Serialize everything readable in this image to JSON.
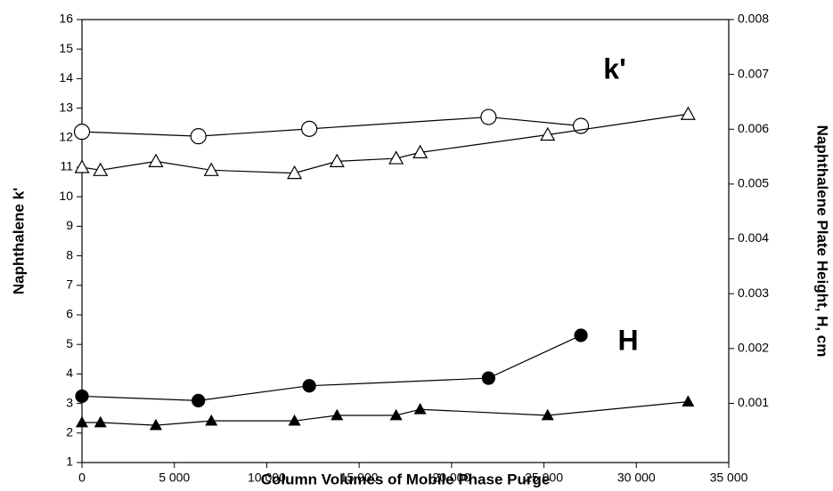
{
  "chart_data": {
    "type": "line",
    "xlabel": "Column Volumes of Mobile Phase Purge",
    "ylabel": "Naphthalene k'",
    "y2label": "Naphthalene Plate Height, H, cm",
    "annotations": [
      "k'",
      "H"
    ],
    "xlim": [
      0,
      35000
    ],
    "xticks": [
      0,
      {
        "value": 5000,
        "label": "5 000"
      },
      {
        "value": 10000,
        "label": "10 000"
      },
      {
        "value": 15000,
        "label": "15 000"
      },
      {
        "value": 20000,
        "label": "20 000"
      },
      {
        "value": 25000,
        "label": "25 000"
      },
      {
        "value": 30000,
        "label": "30 000"
      },
      {
        "value": 35000,
        "label": "35 000"
      }
    ],
    "ylim": [
      1,
      16
    ],
    "yticks": [
      1,
      2,
      3,
      4,
      5,
      6,
      7,
      8,
      9,
      10,
      11,
      12,
      13,
      14,
      15,
      16
    ],
    "y2lim": [
      -8e-05,
      0.008
    ],
    "y2ticks": [
      0.001,
      0.002,
      0.003,
      0.004,
      0.005,
      0.006,
      0.007,
      0.008
    ],
    "series": [
      {
        "marker": "circle",
        "filled": false,
        "color": "#000000",
        "x": [
          0,
          6300,
          12300,
          22000,
          27000
        ],
        "values": [
          12.2,
          12.05,
          12.3,
          12.7,
          12.4
        ]
      },
      {
        "marker": "triangle",
        "filled": false,
        "color": "#000000",
        "x": [
          0,
          1000,
          4000,
          7000,
          11500,
          13800,
          17000,
          18300,
          25200,
          32800
        ],
        "values": [
          11.0,
          10.9,
          11.2,
          10.9,
          10.8,
          11.2,
          11.3,
          11.5,
          12.1,
          12.8
        ]
      },
      {
        "marker": "circle",
        "filled": true,
        "color": "#000000",
        "axis": "y2",
        "x": [
          0,
          6300,
          12300,
          22000,
          27000
        ],
        "values": [
          0.00113,
          0.00105,
          0.00132,
          0.00146,
          0.00224
        ]
      },
      {
        "marker": "triangle",
        "filled": true,
        "color": "#000000",
        "axis": "y2",
        "x": [
          0,
          1000,
          4000,
          7000,
          11500,
          13800,
          17000,
          18300,
          25200,
          32800
        ],
        "values": [
          0.00065,
          0.00065,
          0.0006,
          0.00068,
          0.00068,
          0.00078,
          0.00078,
          0.00089,
          0.00078,
          0.00103
        ]
      }
    ]
  }
}
